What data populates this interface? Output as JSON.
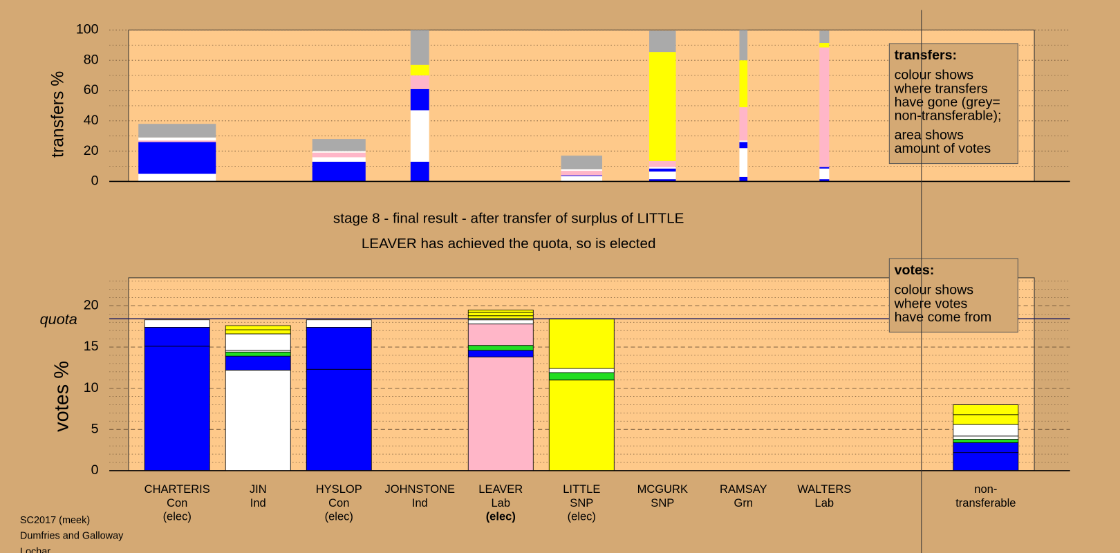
{
  "header": {
    "lines": [
      "stage 8 - final result - after transfer of surplus of LITTLE",
      "LEAVER has achieved the quota, so is elected"
    ]
  },
  "footer": {
    "lines": [
      "SC2017 (meek)",
      "Dumfries and Galloway",
      "Lochar"
    ]
  },
  "chart_data": [
    {
      "type": "bar",
      "stacked": true,
      "ylabel": "transfers %",
      "ylim": [
        0,
        100
      ],
      "yticks": [
        0,
        20,
        40,
        60,
        80,
        100
      ],
      "minor_yticks": [
        10,
        30,
        50,
        70,
        90
      ],
      "grid": true,
      "legend": {
        "heading": "transfers:",
        "paragraphs": [
          [
            "colour shows",
            "where transfers",
            "have gone (grey=",
            "non-transferable);"
          ],
          [
            "area shows",
            "amount of votes"
          ]
        ]
      },
      "relative_sizes": [
        0.96,
        null,
        0.66,
        0.23,
        null,
        0.51,
        0.33,
        0.1,
        0.12,
        null
      ],
      "stacks": [
        [
          {
            "color": "#ffffff",
            "value": 5
          },
          {
            "color": "#0000ff",
            "value": 21
          },
          {
            "color": "#ffb6c8",
            "value": 1
          },
          {
            "color": "#ffffff",
            "value": 2
          },
          {
            "color": "#aaaaaa",
            "value": 9
          }
        ],
        null,
        [
          {
            "color": "#0000ff",
            "value": 13
          },
          {
            "color": "#ffffff",
            "value": 3
          },
          {
            "color": "#ffb6c8",
            "value": 3
          },
          {
            "color": "#ffffff",
            "value": 1
          },
          {
            "color": "#aaaaaa",
            "value": 8
          }
        ],
        [
          {
            "color": "#0000ff",
            "value": 13
          },
          {
            "color": "#ffffff",
            "value": 34
          },
          {
            "color": "#0000ff",
            "value": 14
          },
          {
            "color": "#ffb6c8",
            "value": 9
          },
          {
            "color": "#ffff00",
            "value": 7
          },
          {
            "color": "#aaaaaa",
            "value": 23
          }
        ],
        null,
        [
          {
            "color": "#ffffff",
            "value": 3.5
          },
          {
            "color": "#0000ff",
            "value": 0.5
          },
          {
            "color": "#ffb6c8",
            "value": 3
          },
          {
            "color": "#ffffff",
            "value": 1
          },
          {
            "color": "#aaaaaa",
            "value": 9
          }
        ],
        [
          {
            "color": "#0000ff",
            "value": 1.5
          },
          {
            "color": "#ffffff",
            "value": 5
          },
          {
            "color": "#0000ff",
            "value": 2
          },
          {
            "color": "#ffffff",
            "value": 1
          },
          {
            "color": "#ffb6c8",
            "value": 4
          },
          {
            "color": "#ffff00",
            "value": 72
          },
          {
            "color": "#aaaaaa",
            "value": 14
          }
        ],
        [
          {
            "color": "#0000ff",
            "value": 3
          },
          {
            "color": "#ffffff",
            "value": 19
          },
          {
            "color": "#0000ff",
            "value": 4
          },
          {
            "color": "#ffffff",
            "value": 1
          },
          {
            "color": "#ffb6c8",
            "value": 22
          },
          {
            "color": "#ffff00",
            "value": 31
          },
          {
            "color": "#aaaaaa",
            "value": 20
          }
        ],
        [
          {
            "color": "#0000ff",
            "value": 1.5
          },
          {
            "color": "#ffffff",
            "value": 7
          },
          {
            "color": "#0000ff",
            "value": 1
          },
          {
            "color": "#ffb6c8",
            "value": 79
          },
          {
            "color": "#ffff00",
            "value": 3
          },
          {
            "color": "#aaaaaa",
            "value": 8
          }
        ],
        null
      ]
    },
    {
      "type": "bar",
      "stacked": true,
      "ylabel": "votes %",
      "ylim": [
        0,
        23.4
      ],
      "yticks": [
        0,
        5,
        10,
        15,
        20
      ],
      "minor_yticks": [
        1,
        2,
        3,
        4,
        6,
        7,
        8,
        9,
        11,
        12,
        13,
        14,
        16,
        17,
        18,
        19,
        21,
        22,
        23
      ],
      "grid": true,
      "quota": {
        "label": "quota",
        "value": 18.44
      },
      "legend": {
        "heading": "votes:",
        "paragraphs": [
          [
            "colour shows",
            "where votes",
            "have come from"
          ]
        ]
      },
      "labels": [
        [
          "CHARTERIS",
          "Con",
          "(elec)"
        ],
        [
          "JIN",
          "Ind"
        ],
        [
          "HYSLOP",
          "Con",
          "(elec)"
        ],
        [
          "JOHNSTONE",
          "Ind"
        ],
        [
          "LEAVER",
          "Lab",
          "(elec)"
        ],
        [
          "LITTLE",
          "SNP",
          "(elec)"
        ],
        [
          "MCGURK",
          "SNP"
        ],
        [
          "RAMSAY",
          "Grn"
        ],
        [
          "WALTERS",
          "Lab"
        ],
        [
          "non-",
          "transferable"
        ]
      ],
      "stacks": [
        [
          {
            "color": "#0000ff",
            "value": 15.1
          },
          {
            "color": "#0000ff",
            "value": 2.3
          },
          {
            "color": "#ffffff",
            "value": 0.9
          }
        ],
        [
          {
            "color": "#ffffff",
            "value": 12.2
          },
          {
            "color": "#0000ff",
            "value": 1.7
          },
          {
            "color": "#22dd22",
            "value": 0.5
          },
          {
            "color": "#ffffff",
            "value": 0.2
          },
          {
            "color": "#ffffff",
            "value": 2.0
          },
          {
            "color": "#ffff00",
            "value": 0.5
          },
          {
            "color": "#ffff00",
            "value": 0.5
          }
        ],
        [
          {
            "color": "#0000ff",
            "value": 12.3
          },
          {
            "color": "#0000ff",
            "value": 5.1
          },
          {
            "color": "#ffffff",
            "value": 0.9
          }
        ],
        null,
        [
          {
            "color": "#ffb6c8",
            "value": 13.8
          },
          {
            "color": "#0000ff",
            "value": 0.8
          },
          {
            "color": "#22dd22",
            "value": 0.6
          },
          {
            "color": "#ffb6c8",
            "value": 2.6
          },
          {
            "color": "#ffffff",
            "value": 0.5
          },
          {
            "color": "#ffff00",
            "value": 0.5
          },
          {
            "color": "#ffff00",
            "value": 0.4
          },
          {
            "color": "#ffff00",
            "value": 0.3
          }
        ],
        [
          {
            "color": "#ffff00",
            "value": 11.0
          },
          {
            "color": "#22dd22",
            "value": 0.9
          },
          {
            "color": "#ffffff",
            "value": 0.5
          },
          {
            "color": "#ffff00",
            "value": 6.0
          }
        ],
        null,
        null,
        null,
        [
          {
            "color": "#0000ff",
            "value": 2.2
          },
          {
            "color": "#0000ff",
            "value": 1.2
          },
          {
            "color": "#22dd22",
            "value": 0.4
          },
          {
            "color": "#ffffff",
            "value": 0.4
          },
          {
            "color": "#ffffff",
            "value": 1.4
          },
          {
            "color": "#ffff00",
            "value": 1.2
          },
          {
            "color": "#ffff00",
            "value": 1.2
          }
        ]
      ]
    }
  ]
}
